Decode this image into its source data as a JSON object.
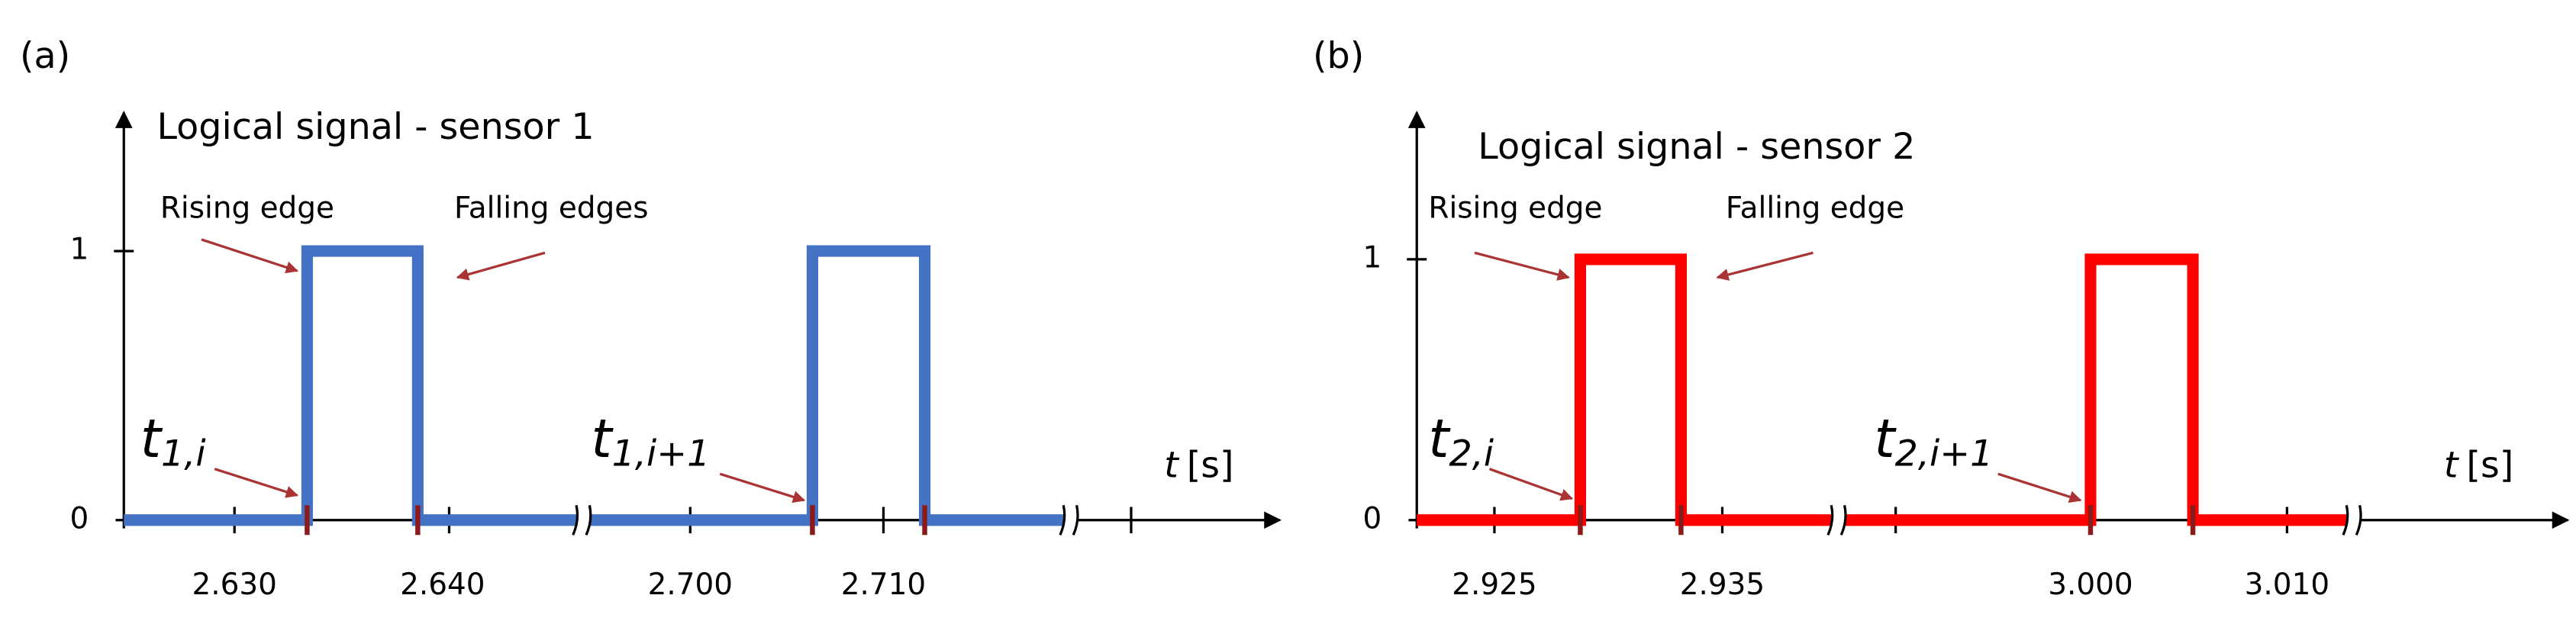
{
  "panels": [
    {
      "label": "(a)",
      "title": "Logical signal - sensor 1",
      "y_ticks": [
        "0",
        "1"
      ],
      "x_ticks": [
        "2.630",
        "2.640",
        "2.700",
        "2.710"
      ],
      "annotations": [
        "Rising edge",
        "Falling edges"
      ],
      "times": [
        {
          "var": "t",
          "sub": "1,i"
        },
        {
          "var": "t",
          "sub": "1,i+1"
        }
      ],
      "axis_label": {
        "var": "t",
        "unit": "[s]"
      }
    },
    {
      "label": "(b)",
      "title": "Logical signal - sensor 2",
      "y_ticks": [
        "0",
        "1"
      ],
      "x_ticks": [
        "2.925",
        "2.935",
        "3.000",
        "3.010"
      ],
      "annotations": [
        "Rising edge",
        "Falling edge"
      ],
      "times": [
        {
          "var": "t",
          "sub": "2,i"
        },
        {
          "var": "t",
          "sub": "2,i+1"
        }
      ],
      "axis_label": {
        "var": "t",
        "unit": "[s]"
      }
    }
  ]
}
